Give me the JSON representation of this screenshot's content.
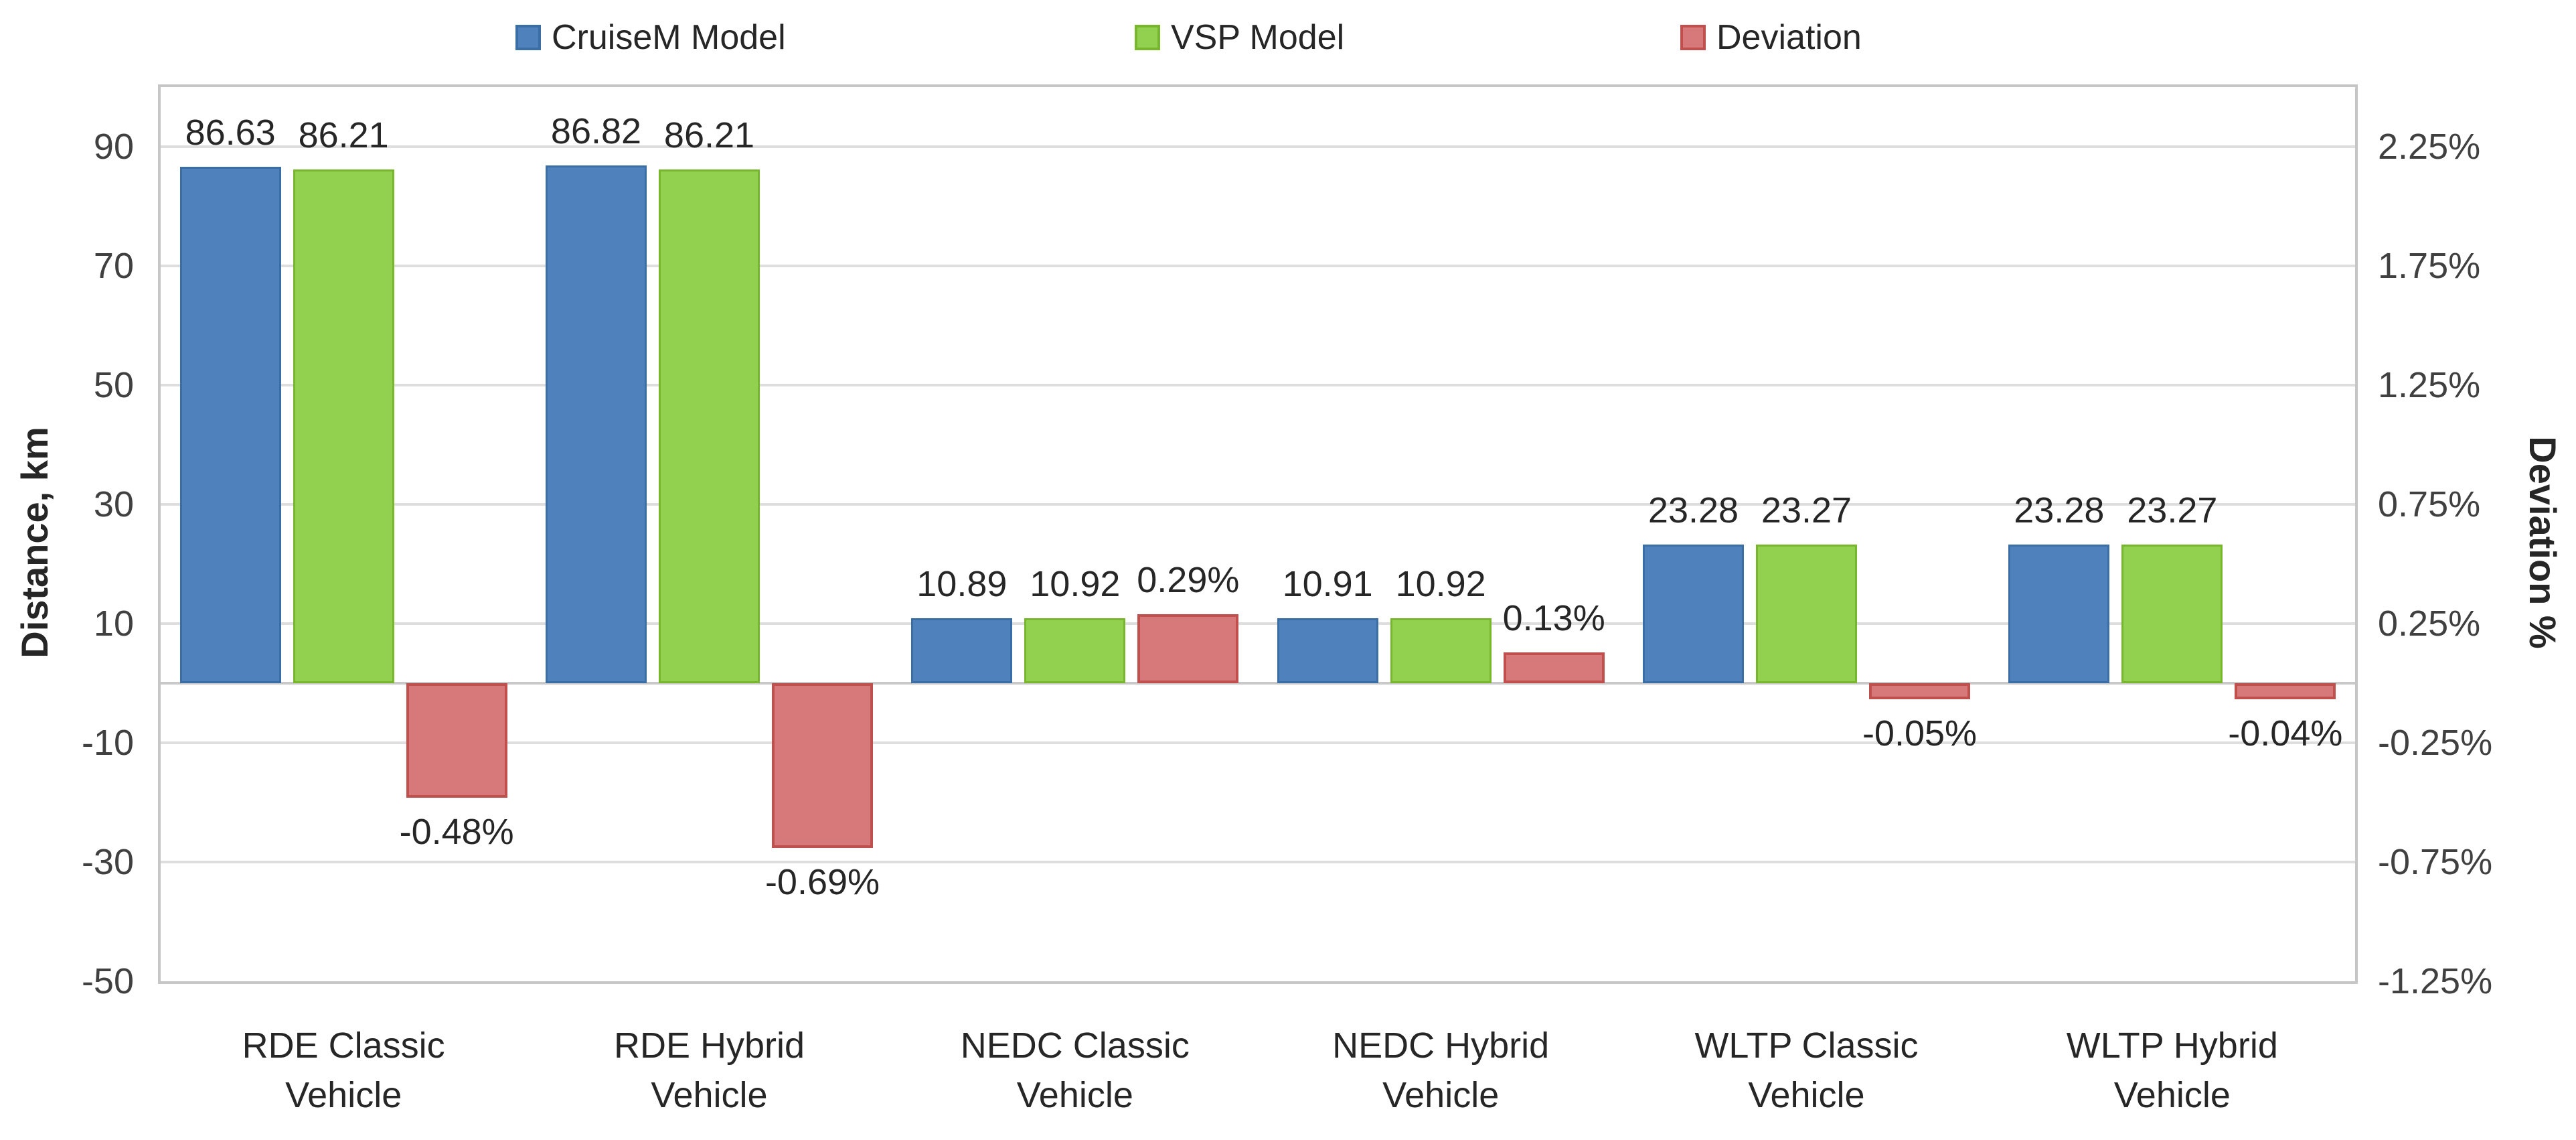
{
  "legend": {
    "items": [
      {
        "label": "CruiseM Model",
        "fill": "#4f81bd",
        "border": "#3a6ea5"
      },
      {
        "label": "VSP Model",
        "fill": "#92d050",
        "border": "#78b62e"
      },
      {
        "label": "Deviation",
        "fill": "#d7787b",
        "border": "#c0504d"
      }
    ]
  },
  "axes": {
    "left": {
      "title": "Distance, km",
      "ticks": [
        {
          "label": "90",
          "value": 90
        },
        {
          "label": "70",
          "value": 70
        },
        {
          "label": "50",
          "value": 50
        },
        {
          "label": "30",
          "value": 30
        },
        {
          "label": "10",
          "value": 10
        },
        {
          "label": "-10",
          "value": -10
        },
        {
          "label": "-30",
          "value": -30
        },
        {
          "label": "-50",
          "value": -50
        }
      ]
    },
    "right": {
      "title": "Deviation %",
      "ticks": [
        {
          "label": "2.25%",
          "value": 2.25
        },
        {
          "label": "1.75%",
          "value": 1.75
        },
        {
          "label": "1.25%",
          "value": 1.25
        },
        {
          "label": "0.75%",
          "value": 0.75
        },
        {
          "label": "0.25%",
          "value": 0.25
        },
        {
          "label": "-0.25%",
          "value": -0.25
        },
        {
          "label": "-0.75%",
          "value": -0.75
        },
        {
          "label": "-1.25%",
          "value": -1.25
        }
      ]
    }
  },
  "chart_data": {
    "type": "bar",
    "categories": [
      "RDE Classic Vehicle",
      "RDE Hybrid Vehicle",
      "NEDC Classic Vehicle",
      "NEDC Hybrid Vehicle",
      "WLTP Classic Vehicle",
      "WLTP Hybrid Vehicle"
    ],
    "category_lines": [
      [
        "RDE Classic",
        "Vehicle"
      ],
      [
        "RDE Hybrid",
        "Vehicle"
      ],
      [
        "NEDC Classic",
        "Vehicle"
      ],
      [
        "NEDC Hybrid",
        "Vehicle"
      ],
      [
        "WLTP Classic",
        "Vehicle"
      ],
      [
        "WLTP Hybrid",
        "Vehicle"
      ]
    ],
    "series": [
      {
        "name": "CruiseM Model",
        "axis": "left",
        "unit": "km",
        "color": "#4f81bd",
        "values": [
          86.63,
          86.82,
          10.89,
          10.91,
          23.28,
          23.28
        ],
        "labels": [
          "86.63",
          "86.82",
          "10.89",
          "10.91",
          "23.28",
          "23.28"
        ]
      },
      {
        "name": "VSP Model",
        "axis": "left",
        "unit": "km",
        "color": "#92d050",
        "values": [
          86.21,
          86.21,
          10.92,
          10.92,
          23.27,
          23.27
        ],
        "labels": [
          "86.21",
          "86.21",
          "10.92",
          "10.92",
          "23.27",
          "23.27"
        ]
      },
      {
        "name": "Deviation",
        "axis": "right",
        "unit": "%",
        "color": "#d7787b",
        "values": [
          -0.48,
          -0.69,
          0.29,
          0.13,
          -0.05,
          -0.04
        ],
        "labels": [
          "-0.48%",
          "-0.69%",
          "0.29%",
          "0.13%",
          "-0.05%",
          "-0.04%"
        ]
      }
    ],
    "ylabel_left": "Distance, km",
    "ylabel_right": "Deviation %",
    "ylim_left": [
      -50,
      100
    ],
    "ylim_right": [
      -1.25,
      2.5
    ],
    "gridlines_left": [
      90,
      70,
      50,
      30,
      10,
      -10,
      -30
    ],
    "grid": true,
    "legend_position": "top"
  },
  "colors": {
    "cruisem_fill": "#4f81bd",
    "cruisem_border": "#3a6ea5",
    "vsp_fill": "#92d050",
    "vsp_border": "#78b62e",
    "deviation_fill": "#d7787b",
    "deviation_border": "#c0504d",
    "gridline": "#dedede",
    "plot_border": "#c6c6c6",
    "text": "#262626",
    "tick_text": "#404040"
  }
}
